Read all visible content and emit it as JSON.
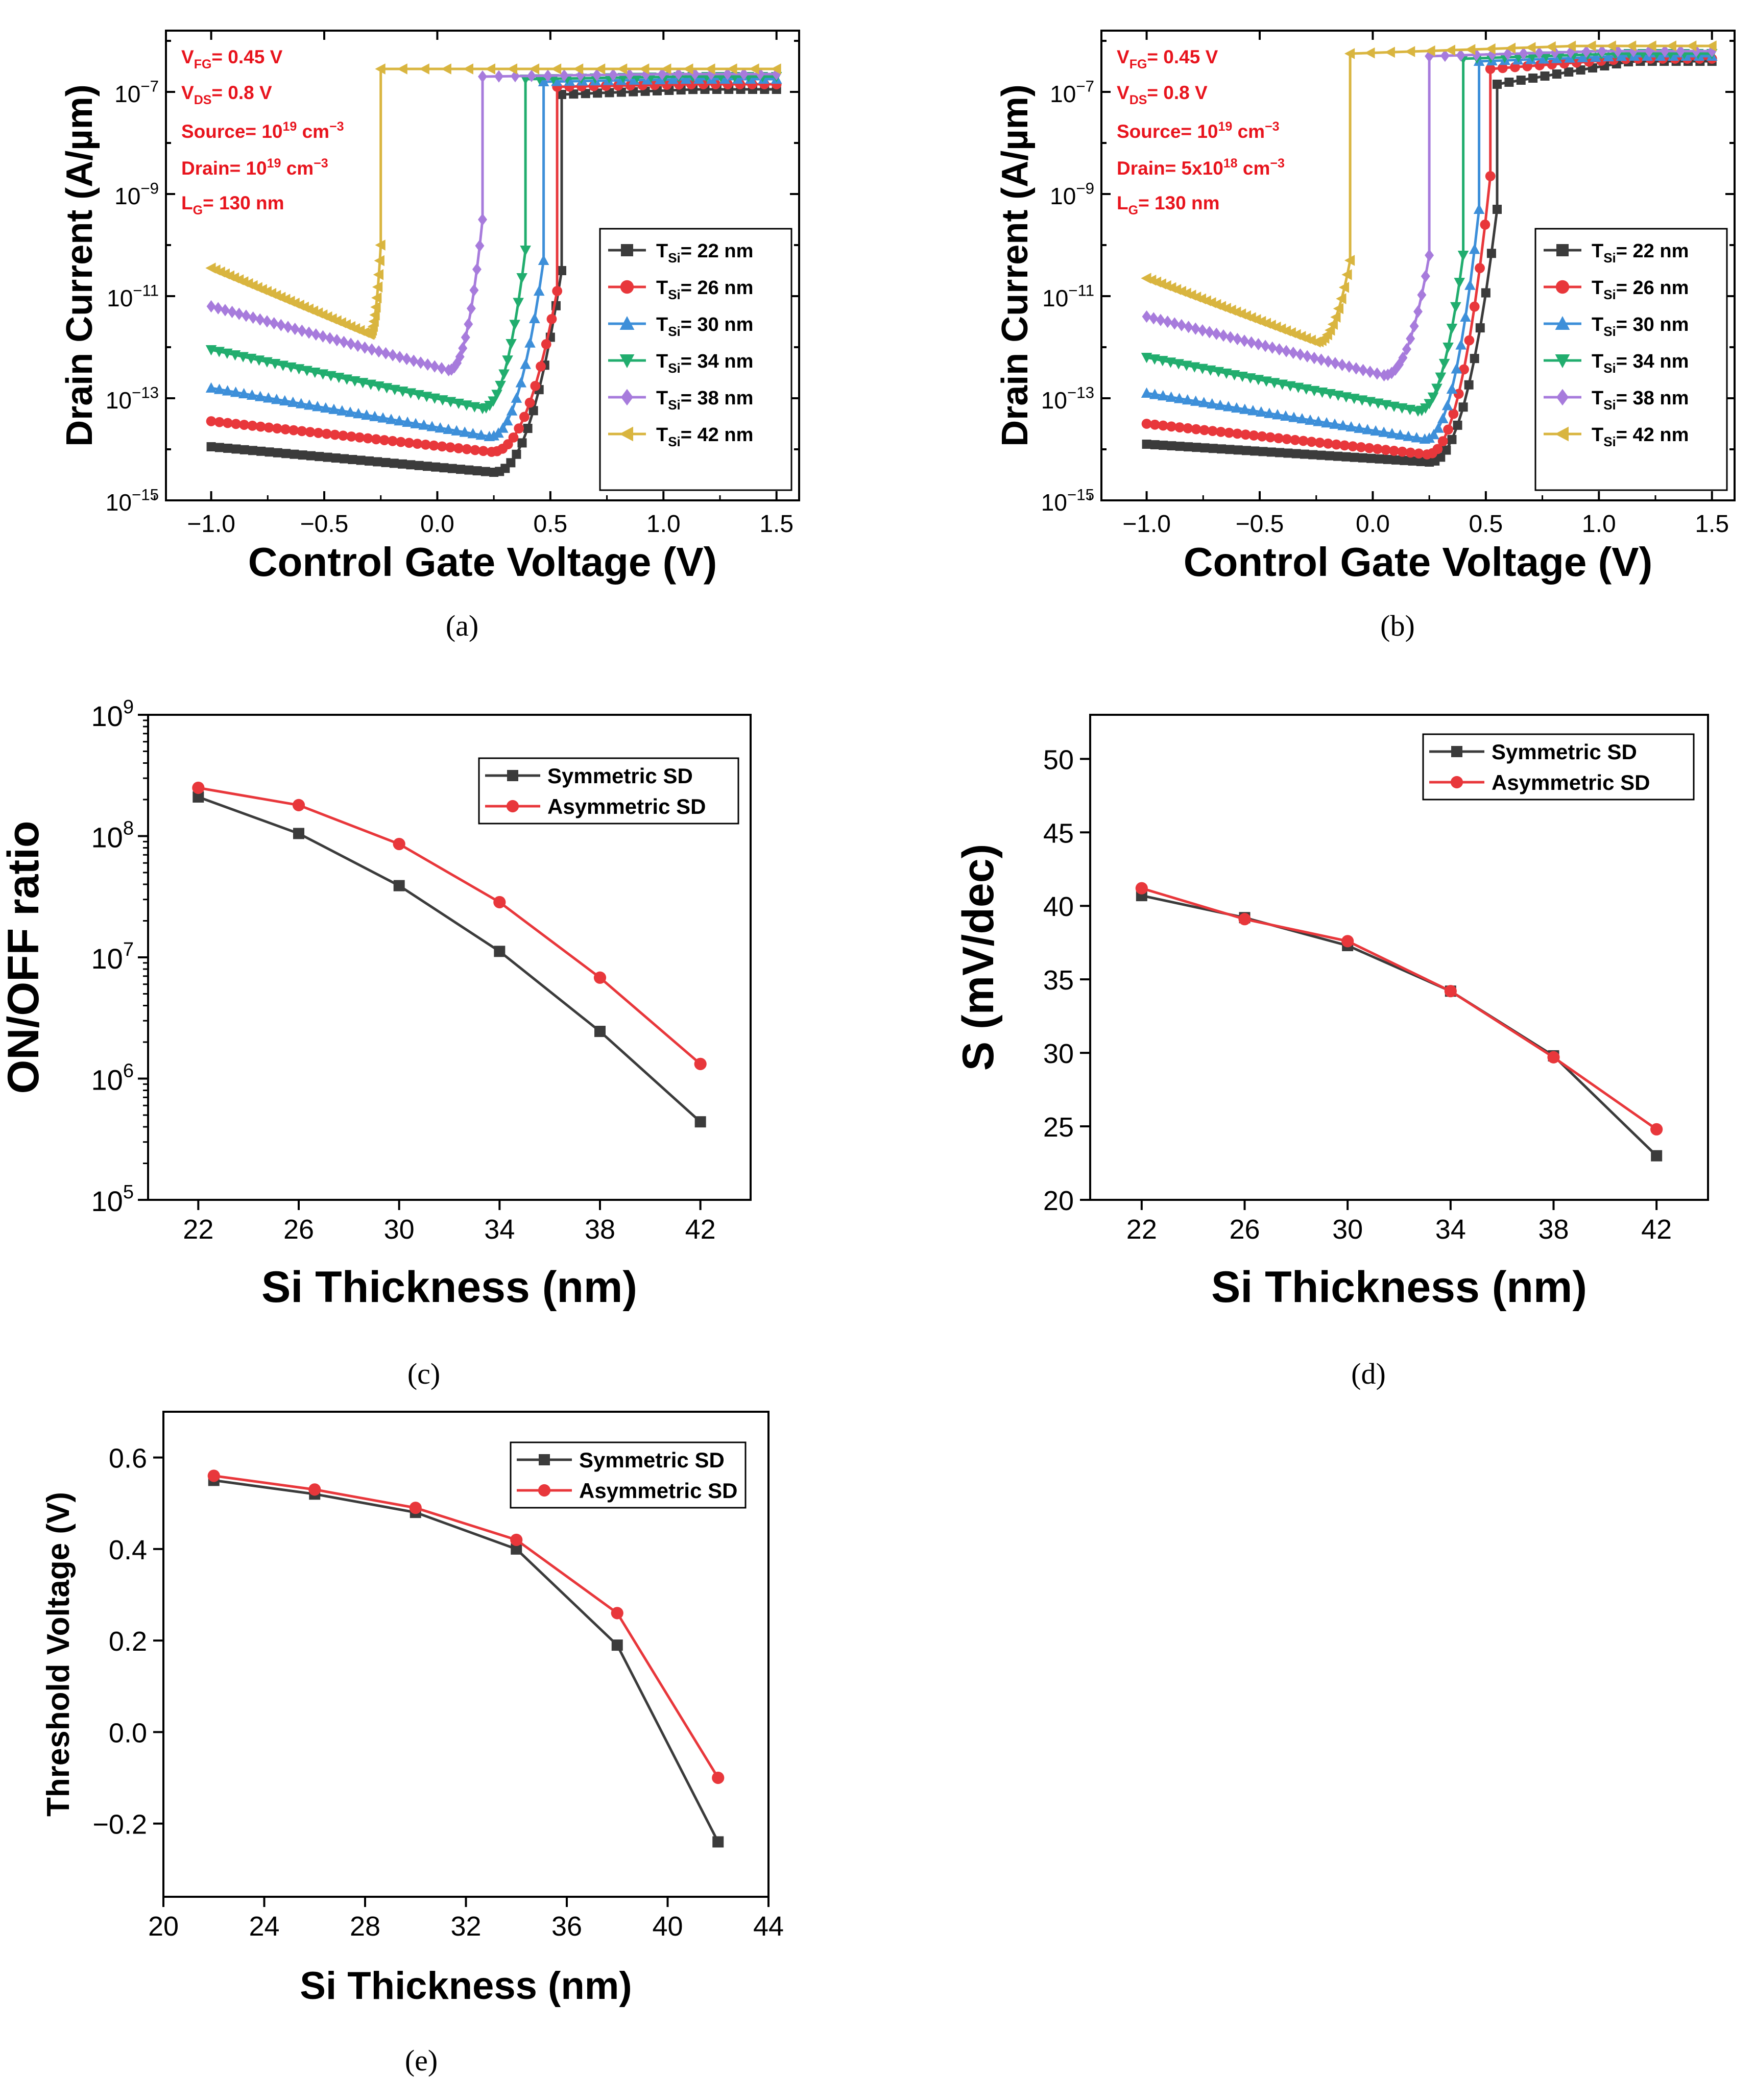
{
  "chart_data": [
    {
      "id": "a",
      "type": "line",
      "caption": "(a)",
      "xlabel": "Control Gate Voltage (V)",
      "ylabel": "Drain Current (A/µm)",
      "xlim": [
        -1.2,
        1.6
      ],
      "ylim_log10": [
        -15,
        -5.8
      ],
      "yscale": "log",
      "x_ticks": [
        -1.0,
        -0.5,
        0.0,
        0.5,
        1.0,
        1.5
      ],
      "x_tick_labels": [
        "−1.0",
        "−0.5",
        "0.0",
        "0.5",
        "1.0",
        "1.5"
      ],
      "y_tick_exponents": [
        -15,
        -13,
        -11,
        -9,
        -7
      ],
      "annotations": {
        "vfg": {
          "sym": "V",
          "sub": "FG",
          "text": "= 0.45 V"
        },
        "vds": {
          "sym": "V",
          "sub": "DS",
          "text": "= 0.8 V"
        },
        "source": {
          "text": "Source= 10",
          "sup": "19",
          "unit": " cm",
          "unit_sup": "−3"
        },
        "drain": {
          "text": "Drain= 10",
          "sup": "19",
          "unit": " cm",
          "unit_sup": "−3"
        },
        "lg": {
          "sym": "L",
          "sub": "G",
          "text": "= 130 nm"
        }
      },
      "series": [
        {
          "name": "T_Si= 22 nm",
          "label_sym": "T",
          "label_sub": "Si",
          "label_text": "= 22 nm",
          "color": "#3b3b3b",
          "marker": "square",
          "x_start": -1.0,
          "I_start_log": -13.95,
          "x_min": 0.25,
          "I_min_log": -14.45,
          "x_jump": 0.55,
          "I_jump_log": -10.5,
          "I_on_log": -7.05,
          "I_end_log": -6.95
        },
        {
          "name": "T_Si= 26 nm",
          "label_sym": "T",
          "label_sub": "Si",
          "label_text": "= 26 nm",
          "color": "#e8373b",
          "marker": "circle",
          "x_start": -1.0,
          "I_start_log": -13.45,
          "x_min": 0.24,
          "I_min_log": -14.05,
          "x_jump": 0.53,
          "I_jump_log": -10.9,
          "I_on_log": -6.9,
          "I_end_log": -6.85
        },
        {
          "name": "T_Si= 30 nm",
          "label_sym": "T",
          "label_sub": "Si",
          "label_text": "= 30 nm",
          "color": "#3d8fd9",
          "marker": "triangle-up",
          "x_start": -1.0,
          "I_start_log": -12.8,
          "x_min": 0.23,
          "I_min_log": -13.75,
          "x_jump": 0.47,
          "I_jump_log": -10.3,
          "I_on_log": -6.8,
          "I_end_log": -6.75
        },
        {
          "name": "T_Si= 34 nm",
          "label_sym": "T",
          "label_sub": "Si",
          "label_text": "= 34 nm",
          "color": "#21ad6e",
          "marker": "triangle-down",
          "x_start": -1.0,
          "I_start_log": -12.05,
          "x_min": 0.2,
          "I_min_log": -13.2,
          "x_jump": 0.39,
          "I_jump_log": -10.1,
          "I_on_log": -6.75,
          "I_end_log": -6.7
        },
        {
          "name": "T_Si= 38 nm",
          "label_sym": "T",
          "label_sub": "Si",
          "label_text": "= 38 nm",
          "color": "#a77bdc",
          "marker": "diamond",
          "x_start": -1.0,
          "I_start_log": -11.2,
          "x_min": 0.05,
          "I_min_log": -12.45,
          "x_jump": 0.2,
          "I_jump_log": -9.5,
          "I_on_log": -6.7,
          "I_end_log": -6.65
        },
        {
          "name": "T_Si= 42 nm",
          "label_sym": "T",
          "label_sub": "Si",
          "label_text": "= 42 nm",
          "color": "#d9b53f",
          "marker": "triangle-left",
          "x_start": -1.0,
          "I_start_log": -10.45,
          "x_min": -0.3,
          "I_min_log": -11.75,
          "x_jump": -0.25,
          "I_jump_log": -10.0,
          "I_on_log": -6.55,
          "I_end_log": -6.55
        }
      ]
    },
    {
      "id": "b",
      "type": "line",
      "caption": "(b)",
      "xlabel": "Control Gate Voltage (V)",
      "ylabel": "Drain Current (A/µm)",
      "xlim": [
        -1.2,
        1.6
      ],
      "ylim_log10": [
        -15,
        -5.8
      ],
      "yscale": "log",
      "x_ticks": [
        -1.0,
        -0.5,
        0.0,
        0.5,
        1.0,
        1.5
      ],
      "x_tick_labels": [
        "−1.0",
        "−0.5",
        "0.0",
        "0.5",
        "1.0",
        "1.5"
      ],
      "y_tick_exponents": [
        -15,
        -13,
        -11,
        -9,
        -7
      ],
      "annotations": {
        "vfg": {
          "sym": "V",
          "sub": "FG",
          "text": "= 0.45 V"
        },
        "vds": {
          "sym": "V",
          "sub": "DS",
          "text": "= 0.8 V"
        },
        "source": {
          "text": "Source= 10",
          "sup": "19",
          "unit": " cm",
          "unit_sup": "−3"
        },
        "drain": {
          "text": "Drain= 5x10",
          "sup": "18",
          "unit": " cm",
          "unit_sup": "−3"
        },
        "lg": {
          "sym": "L",
          "sub": "G",
          "text": "= 130 nm"
        }
      },
      "series": [
        {
          "name": "T_Si= 22 nm",
          "label_sym": "T",
          "label_sub": "Si",
          "label_text": "= 22 nm",
          "color": "#3b3b3b",
          "marker": "square",
          "x_start": -1.0,
          "I_start_log": -13.9,
          "x_min": 0.25,
          "I_min_log": -14.25,
          "x_jump": 0.55,
          "I_jump_log": -9.3,
          "I_on_log": -6.85,
          "I_end_log": -6.4
        },
        {
          "name": "T_Si= 26 nm",
          "label_sym": "T",
          "label_sub": "Si",
          "label_text": "= 26 nm",
          "color": "#e8373b",
          "marker": "circle",
          "x_start": -1.0,
          "I_start_log": -13.5,
          "x_min": 0.24,
          "I_min_log": -14.1,
          "x_jump": 0.52,
          "I_jump_log": -8.65,
          "I_on_log": -6.55,
          "I_end_log": -6.35
        },
        {
          "name": "T_Si= 30 nm",
          "label_sym": "T",
          "label_sub": "Si",
          "label_text": "= 30 nm",
          "color": "#3d8fd9",
          "marker": "triangle-up",
          "x_start": -1.0,
          "I_start_log": -12.9,
          "x_min": 0.23,
          "I_min_log": -13.8,
          "x_jump": 0.47,
          "I_jump_log": -9.3,
          "I_on_log": -6.4,
          "I_end_log": -6.3
        },
        {
          "name": "T_Si= 34 nm",
          "label_sym": "T",
          "label_sub": "Si",
          "label_text": "= 34 nm",
          "color": "#21ad6e",
          "marker": "triangle-down",
          "x_start": -1.0,
          "I_start_log": -12.2,
          "x_min": 0.2,
          "I_min_log": -13.25,
          "x_jump": 0.4,
          "I_jump_log": -10.2,
          "I_on_log": -6.35,
          "I_end_log": -6.25
        },
        {
          "name": "T_Si= 38 nm",
          "label_sym": "T",
          "label_sub": "Si",
          "label_text": "= 38 nm",
          "color": "#a77bdc",
          "marker": "diamond",
          "x_start": -1.0,
          "I_start_log": -11.4,
          "x_min": 0.05,
          "I_min_log": -12.55,
          "x_jump": 0.25,
          "I_jump_log": -10.2,
          "I_on_log": -6.3,
          "I_end_log": -6.2
        },
        {
          "name": "T_Si= 42 nm",
          "label_sym": "T",
          "label_sub": "Si",
          "label_text": "= 42 nm",
          "color": "#d9b53f",
          "marker": "triangle-left",
          "x_start": -1.0,
          "I_start_log": -10.65,
          "x_min": -0.25,
          "I_min_log": -11.9,
          "x_jump": -0.1,
          "I_jump_log": -10.3,
          "I_on_log": -6.25,
          "I_end_log": -6.1
        }
      ]
    },
    {
      "id": "c",
      "type": "line",
      "caption": "(c)",
      "xlabel": "Si Thickness (nm)",
      "ylabel": "ON/OFF ratio",
      "yscale": "log",
      "xlim": [
        20,
        44
      ],
      "ylim_log10": [
        5,
        9
      ],
      "x_ticks": [
        22,
        26,
        30,
        34,
        38,
        42
      ],
      "y_tick_exponents": [
        5,
        6,
        7,
        8,
        9
      ],
      "x": [
        22,
        26,
        30,
        34,
        38,
        42
      ],
      "series": [
        {
          "name": "Symmetric SD",
          "color": "#3b3b3b",
          "marker": "square",
          "values": [
            210000000.0,
            105000000.0,
            39000000.0,
            11200000.0,
            2450000.0,
            440000.0
          ]
        },
        {
          "name": "Asymmetric SD",
          "color": "#e8373b",
          "marker": "circle",
          "values": [
            250000000.0,
            180000000.0,
            86000000.0,
            28500000.0,
            6800000.0,
            1320000.0
          ]
        }
      ]
    },
    {
      "id": "d",
      "type": "line",
      "caption": "(d)",
      "xlabel": "Si Thickness (nm)",
      "ylabel": "S (mV/dec)",
      "xlim": [
        20,
        44
      ],
      "ylim": [
        20,
        53
      ],
      "x_ticks": [
        22,
        26,
        30,
        34,
        38,
        42
      ],
      "y_ticks": [
        20,
        25,
        30,
        35,
        40,
        45,
        50
      ],
      "x": [
        22,
        26,
        30,
        34,
        38,
        42
      ],
      "series": [
        {
          "name": "Symmetric SD",
          "color": "#3b3b3b",
          "marker": "square",
          "values": [
            40.7,
            39.2,
            37.3,
            34.2,
            29.8,
            23.0
          ]
        },
        {
          "name": "Asymmetric SD",
          "color": "#e8373b",
          "marker": "circle",
          "values": [
            41.2,
            39.1,
            37.6,
            34.2,
            29.7,
            24.8
          ]
        }
      ]
    },
    {
      "id": "e",
      "type": "line",
      "caption": "(e)",
      "xlabel": "Si Thickness (nm)",
      "ylabel": "Threshold Voltage (V)",
      "xlim": [
        20,
        44
      ],
      "ylim": [
        -0.36,
        0.7
      ],
      "x_ticks": [
        20,
        24,
        28,
        32,
        36,
        40,
        44
      ],
      "y_ticks": [
        -0.2,
        0.0,
        0.2,
        0.4,
        0.6
      ],
      "y_tick_labels": [
        "−0.2",
        "0.0",
        "0.2",
        "0.4",
        "0.6"
      ],
      "x": [
        22,
        26,
        30,
        34,
        38,
        42
      ],
      "series": [
        {
          "name": "Symmetric SD",
          "color": "#3b3b3b",
          "marker": "square",
          "values": [
            0.55,
            0.52,
            0.48,
            0.4,
            0.19,
            -0.24
          ]
        },
        {
          "name": "Asymmetric SD",
          "color": "#e8373b",
          "marker": "circle",
          "values": [
            0.56,
            0.53,
            0.49,
            0.42,
            0.26,
            -0.1
          ]
        }
      ]
    }
  ]
}
